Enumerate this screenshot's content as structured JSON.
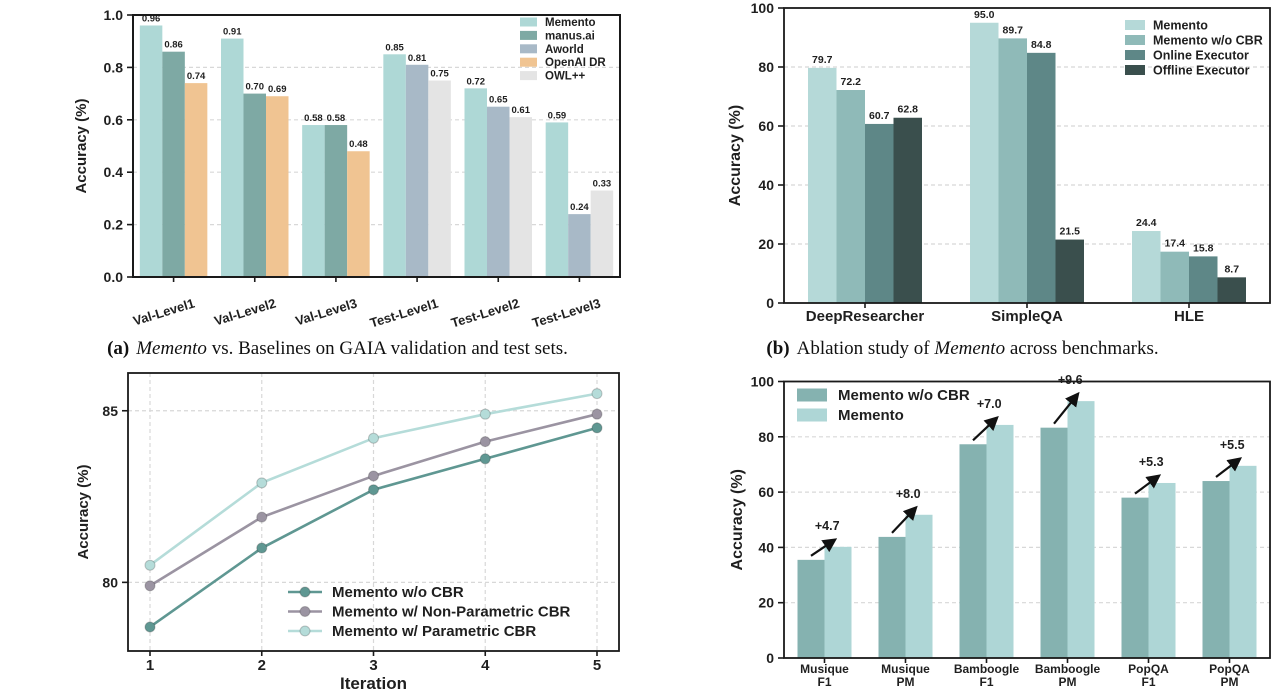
{
  "page": {
    "background": "#ffffff"
  },
  "captions": {
    "a": {
      "tag": "(a)",
      "pre": "",
      "italic": "Memento",
      "rest": " vs. Baselines on GAIA validation and test sets."
    },
    "b": {
      "tag": "(b)",
      "pre": "Ablation study of ",
      "italic": "Memento",
      "rest": " across benchmarks."
    }
  },
  "chart_data": [
    {
      "id": "a",
      "type": "bar",
      "title": "",
      "ylabel": "Accuracy (%)",
      "ylim": [
        0,
        1.0
      ],
      "yticks": [
        0.0,
        0.2,
        0.4,
        0.6,
        0.8,
        1.0
      ],
      "grid": "horizontal-dashed",
      "legend_position": "upper-right",
      "legend_entries": [
        "Memento",
        "manus.ai",
        "Aworld",
        "OpenAI DR",
        "OWL++"
      ],
      "series_colors": {
        "Memento": "#aed8d6",
        "manus.ai": "#7ea9a4",
        "Aworld": "#a8b9c7",
        "OpenAI DR": "#f0c492",
        "OWL++": "#e4e4e4"
      },
      "groups": [
        {
          "label": "Val-Level1",
          "bars": [
            {
              "series": "Memento",
              "value": 0.96
            },
            {
              "series": "manus.ai",
              "value": 0.86
            },
            {
              "series": "OpenAI DR",
              "value": 0.74
            }
          ]
        },
        {
          "label": "Val-Level2",
          "bars": [
            {
              "series": "Memento",
              "value": 0.91
            },
            {
              "series": "manus.ai",
              "value": 0.7
            },
            {
              "series": "OpenAI DR",
              "value": 0.69
            }
          ]
        },
        {
          "label": "Val-Level3",
          "bars": [
            {
              "series": "Memento",
              "value": 0.58
            },
            {
              "series": "manus.ai",
              "value": 0.58
            },
            {
              "series": "OpenAI DR",
              "value": 0.48
            }
          ]
        },
        {
          "label": "Test-Level1",
          "bars": [
            {
              "series": "Memento",
              "value": 0.85
            },
            {
              "series": "Aworld",
              "value": 0.81
            },
            {
              "series": "OWL++",
              "value": 0.75
            }
          ]
        },
        {
          "label": "Test-Level2",
          "bars": [
            {
              "series": "Memento",
              "value": 0.72
            },
            {
              "series": "Aworld",
              "value": 0.65
            },
            {
              "series": "OWL++",
              "value": 0.61
            }
          ]
        },
        {
          "label": "Test-Level3",
          "bars": [
            {
              "series": "Memento",
              "value": 0.59
            },
            {
              "series": "Aworld",
              "value": 0.24
            },
            {
              "series": "OWL++",
              "value": 0.33
            }
          ]
        }
      ],
      "value_label_decimals": 2
    },
    {
      "id": "b",
      "type": "bar",
      "title": "",
      "ylabel": "Accuracy (%)",
      "ylim": [
        0,
        100
      ],
      "yticks": [
        0,
        20,
        40,
        60,
        80,
        100
      ],
      "grid": "horizontal-dashed",
      "legend_position": "upper-right",
      "categories": [
        "DeepResearcher",
        "SimpleQA",
        "HLE"
      ],
      "series": [
        {
          "name": "Memento",
          "color": "#b5d9d8",
          "values": [
            79.7,
            95.0,
            24.4
          ]
        },
        {
          "name": "Memento w/o CBR",
          "color": "#8fbab8",
          "values": [
            72.2,
            89.7,
            17.4
          ]
        },
        {
          "name": "Online Executor",
          "color": "#5e8787",
          "values": [
            60.7,
            84.8,
            15.8
          ]
        },
        {
          "name": "Offline Executor",
          "color": "#3a4f4d",
          "values": [
            62.8,
            21.5,
            8.7
          ]
        }
      ],
      "value_label_decimals": 1
    },
    {
      "id": "c",
      "type": "line",
      "title": "",
      "xlabel": "Iteration",
      "ylabel": "Accuracy (%)",
      "x": [
        1,
        2,
        3,
        4,
        5
      ],
      "ylim": [
        78.0,
        86.1
      ],
      "yticks": [
        80,
        85
      ],
      "grid": "both-dashed",
      "legend_position": "lower-right",
      "series": [
        {
          "name": "Memento w/o CBR",
          "color": "#5f9792",
          "values": [
            78.7,
            81.0,
            82.7,
            83.6,
            84.5
          ]
        },
        {
          "name": "Memento w/ Non-Parametric CBR",
          "color": "#9b94a2",
          "values": [
            79.9,
            81.9,
            83.1,
            84.1,
            84.9
          ]
        },
        {
          "name": "Memento w/ Parametric CBR",
          "color": "#b5dcd9",
          "values": [
            80.5,
            82.9,
            84.2,
            84.9,
            85.5
          ]
        }
      ]
    },
    {
      "id": "d",
      "type": "bar",
      "title": "",
      "ylabel": "Accuracy (%)",
      "ylim": [
        0,
        100
      ],
      "yticks": [
        0,
        20,
        40,
        60,
        80,
        100
      ],
      "grid": "horizontal-dashed",
      "legend_position": "upper-left",
      "categories": [
        [
          "Musique",
          "F1"
        ],
        [
          "Musique",
          "PM"
        ],
        [
          "Bamboogle",
          "F1"
        ],
        [
          "Bamboogle",
          "PM"
        ],
        [
          "PopQA",
          "F1"
        ],
        [
          "PopQA",
          "PM"
        ]
      ],
      "series": [
        {
          "name": "Memento w/o CBR",
          "color": "#85b2b0",
          "values": [
            35.5,
            43.8,
            77.3,
            83.3,
            58.0,
            64.0
          ]
        },
        {
          "name": "Memento",
          "color": "#aed6d6",
          "values": [
            40.2,
            51.8,
            84.3,
            92.9,
            63.3,
            69.5
          ]
        }
      ],
      "annotations": [
        "+4.7",
        "+8.0",
        "+7.0",
        "+9.6",
        "+5.3",
        "+5.5"
      ]
    }
  ]
}
